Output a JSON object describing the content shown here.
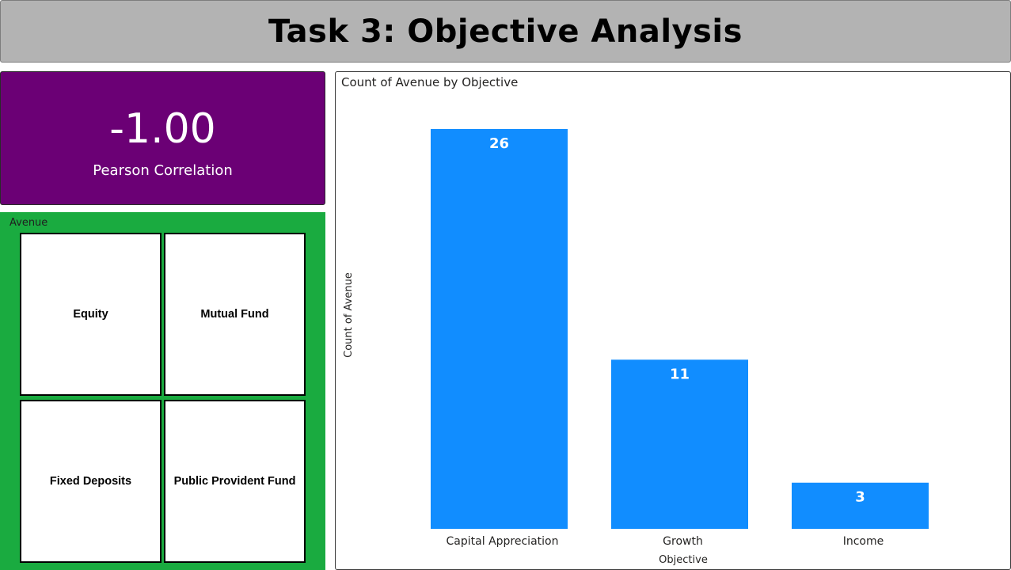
{
  "header": {
    "title": "Task 3: Objective Analysis"
  },
  "kpi": {
    "value": "-1.00",
    "label": "Pearson Correlation",
    "background": "#6b0075"
  },
  "slicer": {
    "title": "Avenue",
    "background": "#1aab40",
    "items": [
      {
        "label": "Equity"
      },
      {
        "label": "Mutual Fund"
      },
      {
        "label": "Fixed Deposits"
      },
      {
        "label": "Public Provident Fund"
      }
    ]
  },
  "chart_data": {
    "type": "bar",
    "title": "Count of Avenue by Objective",
    "xlabel": "Objective",
    "ylabel": "Count of Avenue",
    "categories": [
      "Capital Appreciation",
      "Growth",
      "Income"
    ],
    "values": [
      26,
      11,
      3
    ],
    "data_labels": [
      "26",
      "11",
      "3"
    ],
    "ylim": [
      0,
      26
    ],
    "grid": false,
    "bar_color": "#118dff",
    "label_color": "#ffffff"
  }
}
